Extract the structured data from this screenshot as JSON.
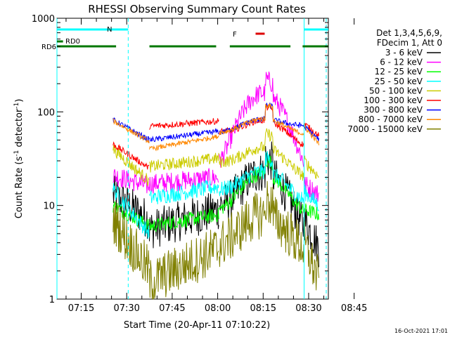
{
  "chart_data": {
    "type": "line",
    "title": "RHESSI Observing Summary Count Rates",
    "xlabel": "Start Time (20-Apr-11 07:10:22)",
    "ylabel_main": "Count Rate (s",
    "ylabel_sup1": "-1",
    "ylabel_mid": " detector",
    "ylabel_sup2": "-1",
    "ylabel_end": ")",
    "yscale": "log",
    "ylim": [
      1,
      1000
    ],
    "xlim_minutes": [
      7.0,
      96.5
    ],
    "x_ticks": [
      {
        "label": "07:15",
        "min": 15
      },
      {
        "label": "07:30",
        "min": 30
      },
      {
        "label": "07:45",
        "min": 45
      },
      {
        "label": "08:00",
        "min": 60
      },
      {
        "label": "08:15",
        "min": 75
      },
      {
        "label": "08:30",
        "min": 90
      },
      {
        "label": "08:45",
        "min": 105
      }
    ],
    "y_ticks": [
      {
        "label": "1",
        "v": 1
      },
      {
        "label": "10",
        "v": 10
      },
      {
        "label": "100",
        "v": 100
      },
      {
        "label": "1000",
        "v": 1000
      }
    ],
    "legend": {
      "header": [
        "Det 1,3,4,5,6,9,",
        "FDecim 1, Att 0"
      ],
      "placement": "right"
    },
    "series": [
      {
        "name": "3 - 6 keV",
        "color": "#000000"
      },
      {
        "name": "6 - 12 keV",
        "color": "#ff00ff"
      },
      {
        "name": "12 - 25 keV",
        "color": "#00ff00"
      },
      {
        "name": "25 - 50 keV",
        "color": "#00ffff"
      },
      {
        "name": "50 - 100 keV",
        "color": "#cccc00"
      },
      {
        "name": "100 - 300 keV",
        "color": "#ff0000"
      },
      {
        "name": "300 - 800 keV",
        "color": "#0000ff"
      },
      {
        "name": "800 - 7000 keV",
        "color": "#ff8800"
      },
      {
        "name": "7000 - 15000 keV",
        "color": "#808000"
      }
    ],
    "flags": [
      {
        "label": "N",
        "color": "#00ffff",
        "segments": [
          [
            7.0,
            30.5
          ],
          [
            88.5,
            96.5
          ]
        ]
      },
      {
        "label": "F",
        "color": "#dd0000",
        "segments": [
          [
            72.5,
            75.5
          ]
        ]
      },
      {
        "label": "RD0",
        "color": "#007700",
        "segments": [
          [
            7.0,
            9.0
          ]
        ]
      },
      {
        "label": "RD6",
        "color": "#007700",
        "segments": [
          [
            7.0,
            26.5
          ],
          [
            37.5,
            59.5
          ],
          [
            64.0,
            84.0
          ],
          [
            88.0,
            96.5
          ]
        ]
      }
    ],
    "timestamp": "16-Oct-2021 17:01"
  }
}
